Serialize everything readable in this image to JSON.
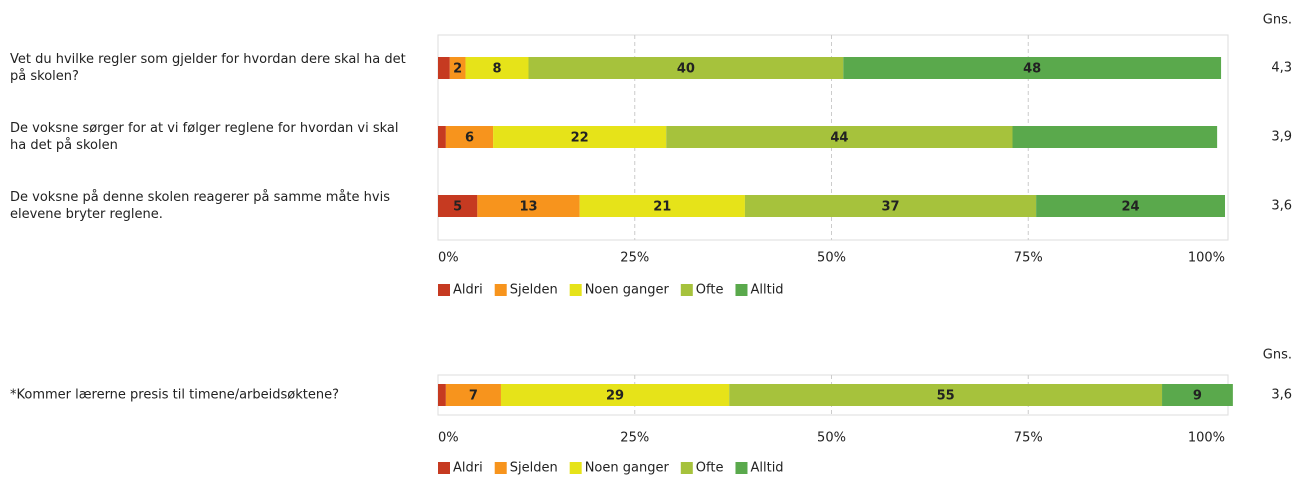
{
  "chart_data": [
    {
      "type": "bar",
      "orientation": "horizontal",
      "stacked": true,
      "categories": [
        "Vet du hvilke regler som gjelder for hvordan dere skal ha det på skolen?",
        "De voksne sørger for at vi følger reglene for hvordan vi skal ha det på skolen",
        "De voksne på denne skolen reagerer på samme måte hvis elevene bryter reglene."
      ],
      "series": [
        {
          "name": "Aldri",
          "color": "#c63a21",
          "values": [
            1.5,
            1,
            5
          ],
          "value_labels": [
            null,
            null,
            "5"
          ]
        },
        {
          "name": "Sjelden",
          "color": "#f7941d",
          "values": [
            2,
            6,
            13
          ],
          "value_labels": [
            "2",
            "6",
            "13"
          ]
        },
        {
          "name": "Noen ganger",
          "color": "#e6e319",
          "values": [
            8,
            22,
            21
          ],
          "value_labels": [
            "8",
            "22",
            "21"
          ]
        },
        {
          "name": "Ofte",
          "color": "#a6c23c",
          "values": [
            40,
            44,
            37
          ],
          "value_labels": [
            "40",
            "44",
            "37"
          ]
        },
        {
          "name": "Alltid",
          "color": "#5aa94c",
          "values": [
            48,
            26,
            24
          ],
          "value_labels": [
            "48",
            null,
            "24"
          ]
        }
      ],
      "xlim": [
        0,
        100
      ],
      "xticks": [
        {
          "value": 0,
          "label": "0%"
        },
        {
          "value": 25,
          "label": "25%"
        },
        {
          "value": 50,
          "label": "50%"
        },
        {
          "value": 75,
          "label": "75%"
        },
        {
          "value": 100,
          "label": "100%"
        }
      ],
      "grid": true,
      "legend": "bottom",
      "mean_header": "Gns.",
      "means": [
        "4,3",
        "3,9",
        "3,6"
      ]
    },
    {
      "type": "bar",
      "orientation": "horizontal",
      "stacked": true,
      "categories": [
        "*Kommer lærerne presis til timene/arbeidsøktene?"
      ],
      "series": [
        {
          "name": "Aldri",
          "color": "#c63a21",
          "values": [
            1
          ],
          "value_labels": [
            null
          ]
        },
        {
          "name": "Sjelden",
          "color": "#f7941d",
          "values": [
            7
          ],
          "value_labels": [
            "7"
          ]
        },
        {
          "name": "Noen ganger",
          "color": "#e6e319",
          "values": [
            29
          ],
          "value_labels": [
            "29"
          ]
        },
        {
          "name": "Ofte",
          "color": "#a6c23c",
          "values": [
            55
          ],
          "value_labels": [
            "55"
          ]
        },
        {
          "name": "Alltid",
          "color": "#5aa94c",
          "values": [
            9
          ],
          "value_labels": [
            "9"
          ]
        }
      ],
      "xlim": [
        0,
        100
      ],
      "xticks": [
        {
          "value": 0,
          "label": "0%"
        },
        {
          "value": 25,
          "label": "25%"
        },
        {
          "value": 50,
          "label": "50%"
        },
        {
          "value": 75,
          "label": "75%"
        },
        {
          "value": 100,
          "label": "100%"
        }
      ],
      "grid": true,
      "legend": "bottom",
      "mean_header": "Gns.",
      "means": [
        "3,6"
      ]
    }
  ]
}
